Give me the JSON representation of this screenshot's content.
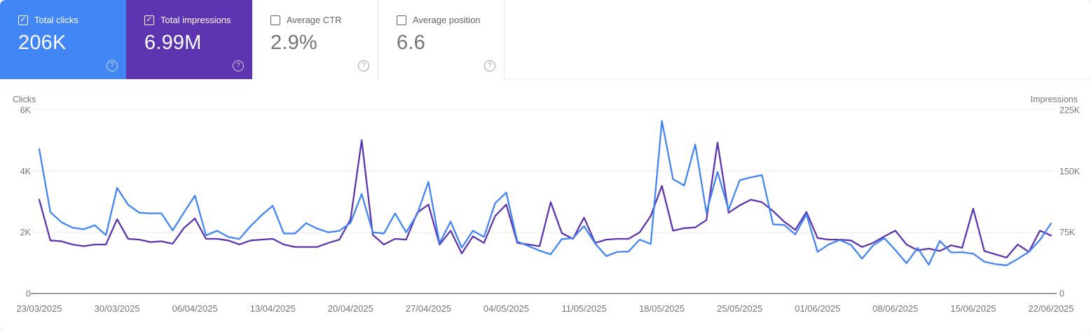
{
  "cards": [
    {
      "label": "Total clicks",
      "value": "206K",
      "checked": true,
      "selected": true,
      "accent": "#4285f4"
    },
    {
      "label": "Total impressions",
      "value": "6.99M",
      "checked": true,
      "selected": true,
      "accent": "#5e35b1"
    },
    {
      "label": "Average CTR",
      "value": "2.9%",
      "checked": false,
      "selected": false,
      "accent": ""
    },
    {
      "label": "Average position",
      "value": "6.6",
      "checked": false,
      "selected": false,
      "accent": ""
    }
  ],
  "help_icon_glyph": "?",
  "checkbox_check_glyph": "✓",
  "chart_data": {
    "type": "line",
    "title": "",
    "grid": "horizontal",
    "left_axis": {
      "label": "Clicks",
      "ticks": [
        "6K",
        "4K",
        "2K",
        "0"
      ],
      "max": 6000
    },
    "right_axis": {
      "label": "Impressions",
      "ticks": [
        "225K",
        "150K",
        "75K",
        "0"
      ],
      "max": 225000
    },
    "x_tick_labels": [
      "23/03/2025",
      "30/03/2025",
      "06/04/2025",
      "13/04/2025",
      "20/04/2025",
      "27/04/2025",
      "04/05/2025",
      "11/05/2025",
      "18/05/2025",
      "25/05/2025",
      "01/06/2025",
      "08/06/2025",
      "15/06/2025",
      "22/06/2025"
    ],
    "dates": [
      "23/03",
      "24/03",
      "25/03",
      "26/03",
      "27/03",
      "28/03",
      "29/03",
      "30/03",
      "31/03",
      "01/04",
      "02/04",
      "03/04",
      "04/04",
      "05/04",
      "06/04",
      "07/04",
      "08/04",
      "09/04",
      "10/04",
      "11/04",
      "12/04",
      "13/04",
      "14/04",
      "15/04",
      "16/04",
      "17/04",
      "18/04",
      "19/04",
      "20/04",
      "21/04",
      "22/04",
      "23/04",
      "24/04",
      "25/04",
      "26/04",
      "27/04",
      "28/04",
      "29/04",
      "30/04",
      "01/05",
      "02/05",
      "03/05",
      "04/05",
      "05/05",
      "06/05",
      "07/05",
      "08/05",
      "09/05",
      "10/05",
      "11/05",
      "12/05",
      "13/05",
      "14/05",
      "15/05",
      "16/05",
      "17/05",
      "18/05",
      "19/05",
      "20/05",
      "21/05",
      "22/05",
      "23/05",
      "24/05",
      "25/05",
      "26/05",
      "27/05",
      "28/05",
      "29/05",
      "30/05",
      "31/05",
      "01/06",
      "02/06",
      "03/06",
      "04/06",
      "05/06",
      "06/06",
      "07/06",
      "08/06",
      "09/06",
      "10/06",
      "11/06",
      "12/06",
      "13/06",
      "14/06",
      "15/06",
      "16/06",
      "17/06",
      "18/06",
      "19/06",
      "20/06",
      "21/06",
      "22/06"
    ],
    "series": [
      {
        "name": "Clicks",
        "color": "#4285f4",
        "axis": "left",
        "values": [
          4720,
          2660,
          2330,
          2150,
          2100,
          2230,
          1910,
          3450,
          2900,
          2640,
          2620,
          2620,
          2060,
          2640,
          3200,
          1900,
          2050,
          1850,
          1780,
          2200,
          2560,
          2870,
          1960,
          1960,
          2300,
          2120,
          2000,
          2050,
          2310,
          3250,
          2000,
          1960,
          2620,
          2000,
          2600,
          3650,
          1650,
          2350,
          1500,
          2050,
          1850,
          2950,
          3300,
          1700,
          1550,
          1400,
          1280,
          1780,
          1810,
          2200,
          1630,
          1220,
          1360,
          1370,
          1760,
          1620,
          5640,
          3740,
          3530,
          4870,
          2650,
          3970,
          2740,
          3700,
          3800,
          3870,
          2260,
          2240,
          1930,
          2590,
          1360,
          1600,
          1750,
          1590,
          1140,
          1570,
          1810,
          1420,
          990,
          1490,
          940,
          1720,
          1340,
          1350,
          1300,
          1040,
          960,
          920,
          1130,
          1360,
          1750,
          2290
        ]
      },
      {
        "name": "Impressions",
        "color": "#5e35b1",
        "axis": "right",
        "values": [
          115000,
          65000,
          64000,
          60000,
          58000,
          60000,
          60000,
          91000,
          67000,
          66000,
          63000,
          64000,
          61000,
          80000,
          92000,
          67000,
          67000,
          65000,
          60000,
          65000,
          66000,
          67000,
          60000,
          57000,
          57000,
          57000,
          62000,
          66000,
          91000,
          188000,
          72000,
          60000,
          67000,
          66000,
          99000,
          109000,
          60000,
          77000,
          49000,
          70000,
          62000,
          95000,
          109000,
          62000,
          60000,
          58000,
          112000,
          74000,
          67000,
          93000,
          62000,
          66000,
          67000,
          67000,
          75000,
          95000,
          132000,
          77000,
          80000,
          81000,
          90000,
          185000,
          99000,
          108000,
          115000,
          112000,
          101000,
          88000,
          78000,
          100000,
          68000,
          66000,
          66000,
          65000,
          57000,
          62000,
          70000,
          77000,
          60000,
          53000,
          55000,
          52000,
          59000,
          56000,
          104000,
          52000,
          48000,
          44000,
          60000,
          51000,
          77000,
          71000
        ]
      }
    ]
  }
}
